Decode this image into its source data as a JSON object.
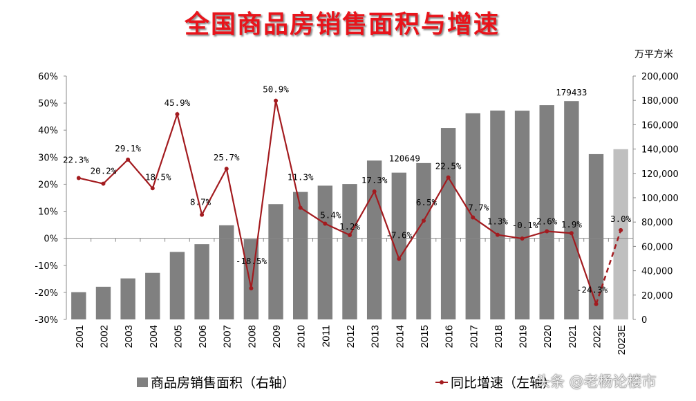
{
  "title": "全国商品房销售面积与增速",
  "right_axis_unit": "万平方米",
  "legend": {
    "bars": "商品房销售面积（右轴）",
    "line": "同比增速（左轴）"
  },
  "watermark": "头条 @老杨论楼市",
  "colors": {
    "bar": "#808080",
    "bar_estimate": "#bfbfbf",
    "line": "#a31b1f",
    "title": "#e8141b"
  },
  "chart_data": {
    "type": "bar+line",
    "title": "全国商品房销售面积与增速",
    "categories": [
      "2001",
      "2002",
      "2003",
      "2004",
      "2005",
      "2006",
      "2007",
      "2008",
      "2009",
      "2010",
      "2011",
      "2012",
      "2013",
      "2014",
      "2015",
      "2016",
      "2017",
      "2018",
      "2019",
      "2020",
      "2021",
      "2022",
      "2023E"
    ],
    "series": [
      {
        "name": "商品房销售面积（右轴）",
        "type": "bar",
        "axis": "right",
        "values": [
          22412,
          26808,
          33718,
          38232,
          55486,
          61857,
          77355,
          65970,
          94755,
          104765,
          109946,
          111304,
          130551,
          120649,
          128495,
          157349,
          169408,
          171654,
          171558,
          176086,
          179433,
          135837,
          139912
        ],
        "data_labels": {
          "2014": "120649",
          "2021": "179433"
        }
      },
      {
        "name": "同比增速（左轴）",
        "type": "line",
        "axis": "left",
        "values": [
          22.3,
          20.2,
          29.1,
          18.5,
          45.9,
          8.7,
          25.7,
          -18.5,
          50.9,
          11.3,
          5.4,
          1.2,
          17.3,
          -7.6,
          6.5,
          22.5,
          7.7,
          1.3,
          -0.1,
          2.6,
          1.9,
          -24.3,
          3.0
        ],
        "data_labels": [
          "22.3%",
          "20.2%",
          "29.1%",
          "18.5%",
          "45.9%",
          "8.7%",
          "25.7%",
          "-18.5%",
          "50.9%",
          "11.3%",
          "5.4%",
          "1.2%",
          "17.3%",
          "-7.6%",
          "6.5%",
          "22.5%",
          "7.7%",
          "1.3%",
          "-0.1%",
          "2.6%",
          "1.9%",
          "-24.3%",
          "3.0%"
        ],
        "estimate_segment": "dashed from 2022 to 2023E"
      }
    ],
    "left_axis": {
      "range": [
        -30,
        60
      ],
      "ticks": [
        "60%",
        "50%",
        "40%",
        "30%",
        "20%",
        "10%",
        "0%",
        "-10%",
        "-20%",
        "-30%"
      ]
    },
    "right_axis": {
      "range": [
        0,
        200000
      ],
      "label": "万平方米",
      "ticks": [
        "200,000",
        "180,000",
        "160,000",
        "140,000",
        "120,000",
        "100,000",
        "80,000",
        "60,000",
        "40,000",
        "20,000",
        "0"
      ]
    },
    "grid": false,
    "legend_position": "bottom"
  }
}
